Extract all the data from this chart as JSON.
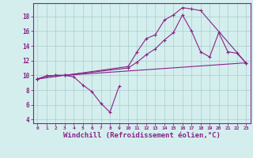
{
  "background_color": "#d4eeee",
  "line_color": "#882288",
  "grid_color": "#aacccc",
  "xlabel": "Windchill (Refroidissement éolien,°C)",
  "xlabel_fontsize": 6.5,
  "ylabel_ticks": [
    4,
    6,
    8,
    10,
    12,
    14,
    16,
    18
  ],
  "xtick_labels": [
    "0",
    "1",
    "2",
    "3",
    "4",
    "5",
    "6",
    "7",
    "8",
    "9",
    "10",
    "11",
    "12",
    "13",
    "14",
    "15",
    "16",
    "17",
    "18",
    "19",
    "20",
    "21",
    "22",
    "23"
  ],
  "xlim": [
    -0.5,
    23.5
  ],
  "ylim": [
    3.5,
    19.8
  ],
  "series": [
    {
      "x": [
        0,
        1,
        2,
        3,
        4,
        5,
        6,
        7,
        8,
        9
      ],
      "y": [
        9.5,
        9.9,
        10.0,
        10.0,
        9.8,
        8.7,
        7.8,
        6.2,
        5.0,
        8.5
      ]
    },
    {
      "x": [
        0,
        1,
        2,
        3,
        10,
        11,
        12,
        13,
        14,
        15,
        16,
        17,
        18,
        23
      ],
      "y": [
        9.5,
        9.9,
        10.0,
        10.0,
        11.2,
        13.2,
        15.0,
        15.5,
        17.5,
        18.2,
        19.2,
        19.0,
        18.8,
        11.7
      ]
    },
    {
      "x": [
        0,
        1,
        2,
        3,
        10,
        11,
        12,
        13,
        14,
        15,
        16,
        17,
        18,
        19,
        20,
        21,
        22,
        23
      ],
      "y": [
        9.5,
        9.9,
        10.0,
        10.0,
        11.0,
        11.8,
        12.8,
        13.6,
        14.8,
        15.8,
        18.2,
        16.0,
        13.2,
        12.5,
        15.8,
        13.2,
        13.0,
        11.7
      ]
    },
    {
      "x": [
        0,
        3,
        23
      ],
      "y": [
        9.5,
        10.0,
        11.7
      ]
    }
  ]
}
